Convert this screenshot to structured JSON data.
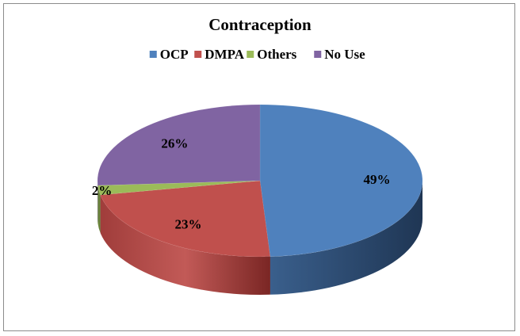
{
  "chart_data": {
    "type": "pie",
    "title": "Contraception",
    "legend_position": "top",
    "categories": [
      "OCP",
      "DMPA",
      "Others",
      "No Use"
    ],
    "values": [
      49,
      23,
      2,
      26
    ],
    "value_labels": [
      "49%",
      "23%",
      "2%",
      "26%"
    ],
    "colors": [
      "#4F81BD",
      "#C0504D",
      "#9BBB59",
      "#8064A2"
    ],
    "style": "3d"
  }
}
